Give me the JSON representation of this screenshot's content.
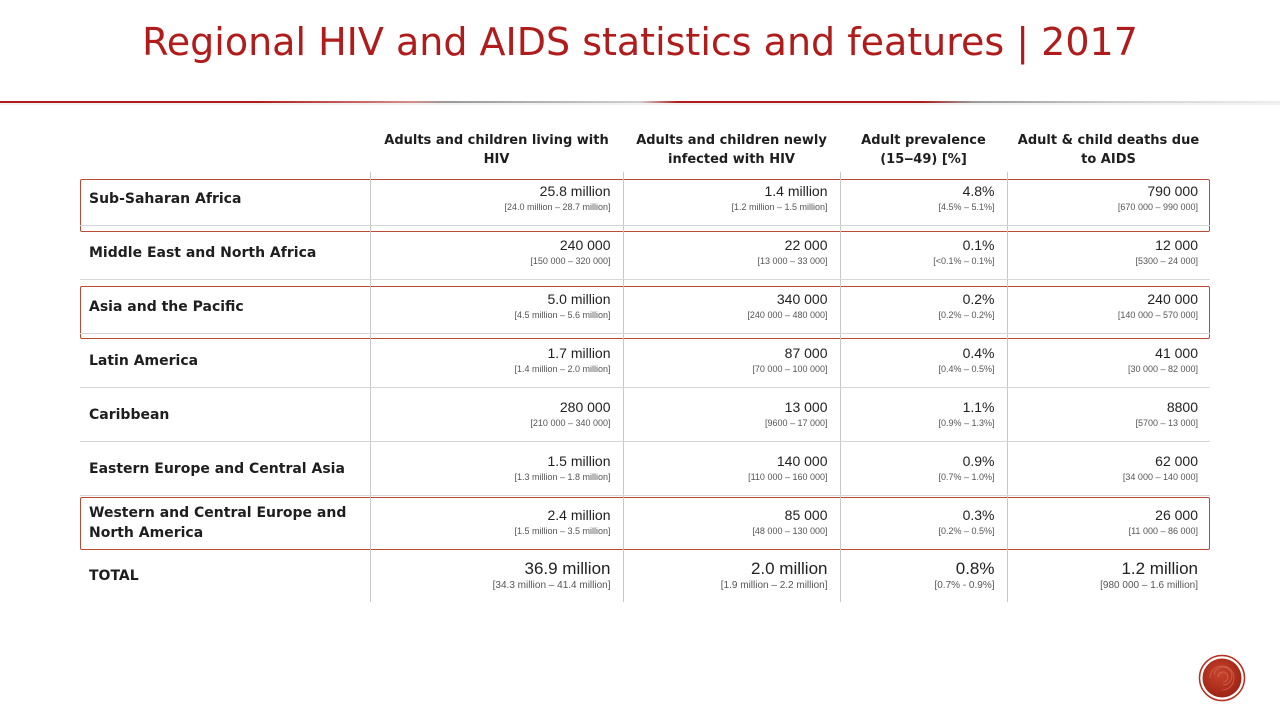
{
  "title": "Regional HIV and AIDS statistics and features  |  2017",
  "columns": [
    "",
    "Adults and children living with HIV",
    "Adults and children newly infected with HIV",
    "Adult prevalence (15‒49) [%]",
    "Adult & child deaths due to AIDS"
  ],
  "rows": [
    {
      "region": "Sub-Saharan  Africa",
      "highlighted": true,
      "living": "25.8 million",
      "living_range": "[24.0 million – 28.7 million]",
      "new": "1.4 million",
      "new_range": "[1.2 million – 1.5 million]",
      "prev": "4.8%",
      "prev_range": "[4.5% – 5.1%]",
      "deaths": "790 000",
      "deaths_range": "[670 000 – 990 000]"
    },
    {
      "region": "Middle East and North Africa",
      "highlighted": false,
      "living": "240 000",
      "living_range": "[150 000 – 320 000]",
      "new": "22 000",
      "new_range": "[13 000 – 33 000]",
      "prev": "0.1%",
      "prev_range": "[<0.1% – 0.1%]",
      "deaths": "12 000",
      "deaths_range": "[5300 – 24 000]"
    },
    {
      "region": "Asia and the Pacific",
      "highlighted": true,
      "living": "5.0 million",
      "living_range": "[4.5 million – 5.6 million]",
      "new": "340 000",
      "new_range": "[240 000 – 480 000]",
      "prev": "0.2%",
      "prev_range": "[0.2% – 0.2%]",
      "deaths": "240 000",
      "deaths_range": "[140 000 – 570 000]"
    },
    {
      "region": "Latin America",
      "highlighted": false,
      "living": "1.7 million",
      "living_range": "[1.4 million – 2.0 million]",
      "new": "87 000",
      "new_range": "[70 000 – 100 000]",
      "prev": "0.4%",
      "prev_range": "[0.4% – 0.5%]",
      "deaths": "41 000",
      "deaths_range": "[30 000 – 82 000]"
    },
    {
      "region": "Caribbean",
      "highlighted": false,
      "living": "280 000",
      "living_range": "[210 000 – 340 000]",
      "new": "13 000",
      "new_range": "[9600 – 17 000]",
      "prev": "1.1%",
      "prev_range": "[0.9% – 1.3%]",
      "deaths": "8800",
      "deaths_range": "[5700 – 13 000]"
    },
    {
      "region": "Eastern Europe and Central Asia",
      "highlighted": false,
      "living": "1.5 million",
      "living_range": "[1.3 million – 1.8 million]",
      "new": "140 000",
      "new_range": "[110 000 – 160 000]",
      "prev": "0.9%",
      "prev_range": "[0.7% – 1.0%]",
      "deaths": "62 000",
      "deaths_range": "[34 000 – 140 000]"
    },
    {
      "region": "Western and Central Europe and North America",
      "highlighted": true,
      "living": "2.4 million",
      "living_range": "[1.5 million – 3.5 million]",
      "new": "85 000",
      "new_range": "[48 000 – 130 000]",
      "prev": "0.3%",
      "prev_range": "[0.2% – 0.5%]",
      "deaths": "26 000",
      "deaths_range": "[11 000 – 86 000]"
    }
  ],
  "total": {
    "label": "TOTAL",
    "living": "36.9 million",
    "living_range": "[34.3 million – 41.4 million]",
    "new": "2.0 million",
    "new_range": "[1.9 million – 2.2 million]",
    "prev": "0.8%",
    "prev_range": "[0.7% - 0.9%]",
    "deaths": "1.2 million",
    "deaths_range": "[980 000 – 1.6 million]"
  },
  "colors": {
    "title": "#b01b1b",
    "highlight_border": "#b94a34",
    "logo": "#b5301f"
  },
  "icons": {
    "logo": "spiral-logo-icon"
  }
}
